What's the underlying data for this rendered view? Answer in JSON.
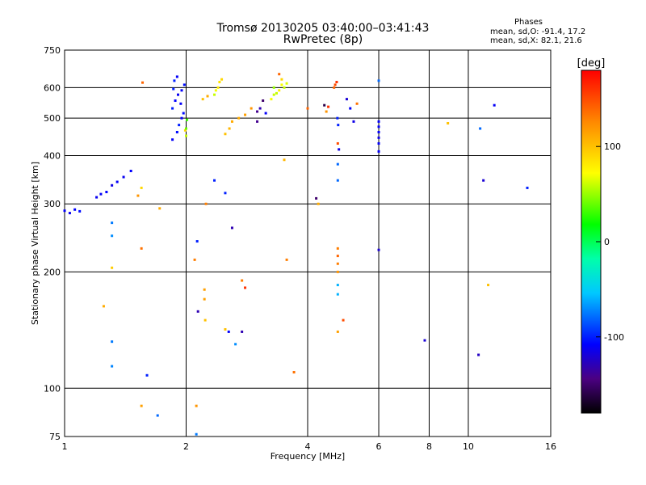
{
  "header": {
    "title": "Tromsø 20130205 03:40:00–03:41:43",
    "subtitle": "RwPretec (8p)"
  },
  "phase_box": {
    "heading": "Phases",
    "line_o": "mean, sd,O: -91.4, 17.2",
    "line_x": "mean, sd,X:  82.1, 21.6"
  },
  "colors": {
    "frame": "#000000",
    "background": "#ffffff"
  },
  "chart_data": {
    "type": "scatter",
    "xlabel": "Frequency [MHz]",
    "ylabel": "Stationary phase Virtual Height [km]",
    "xscale": "log",
    "yscale": "log",
    "xlim": [
      1,
      16
    ],
    "ylim": [
      75,
      750
    ],
    "xticks": [
      1,
      2,
      4,
      6,
      8,
      10,
      16
    ],
    "xtick_labels": [
      "1",
      "2",
      "4",
      "6",
      "8",
      "10",
      "16"
    ],
    "yticks": [
      75,
      100,
      200,
      300,
      400,
      500,
      600,
      750
    ],
    "ytick_labels": [
      "75",
      "100",
      "200",
      "300",
      "400",
      "500",
      "600",
      "750"
    ],
    "grid": true,
    "colorbar": {
      "label": "[deg]",
      "range": [
        -180,
        180
      ],
      "ticks": [
        -100,
        0,
        100
      ],
      "tick_labels": [
        "-100",
        "0",
        "100"
      ]
    },
    "points": [
      [
        1.0,
        288,
        -110
      ],
      [
        1.03,
        284,
        -112
      ],
      [
        1.06,
        290,
        -108
      ],
      [
        1.09,
        287,
        -105
      ],
      [
        1.2,
        312,
        -112
      ],
      [
        1.23,
        318,
        -110
      ],
      [
        1.27,
        322,
        -108
      ],
      [
        1.31,
        335,
        -115
      ],
      [
        1.35,
        342,
        -110
      ],
      [
        1.4,
        352,
        -112
      ],
      [
        1.46,
        365,
        -108
      ],
      [
        1.31,
        268,
        -75
      ],
      [
        1.31,
        248,
        -70
      ],
      [
        1.31,
        132,
        -75
      ],
      [
        1.31,
        114,
        -72
      ],
      [
        1.31,
        205,
        95
      ],
      [
        1.25,
        163,
        110
      ],
      [
        1.55,
        230,
        135
      ],
      [
        1.55,
        90,
        115
      ],
      [
        1.56,
        618,
        140
      ],
      [
        1.6,
        108,
        -100
      ],
      [
        1.7,
        85,
        -80
      ],
      [
        1.72,
        292,
        110
      ],
      [
        1.52,
        315,
        120
      ],
      [
        1.55,
        330,
        90
      ],
      [
        1.85,
        440,
        -110
      ],
      [
        1.9,
        460,
        -105
      ],
      [
        1.92,
        480,
        -100
      ],
      [
        1.95,
        500,
        -110
      ],
      [
        1.97,
        515,
        -105
      ],
      [
        1.85,
        530,
        -100
      ],
      [
        1.88,
        555,
        -108
      ],
      [
        1.91,
        575,
        -112
      ],
      [
        1.95,
        590,
        -110
      ],
      [
        1.98,
        610,
        -105
      ],
      [
        1.87,
        625,
        -100
      ],
      [
        1.9,
        640,
        -110
      ],
      [
        1.86,
        595,
        -100
      ],
      [
        1.94,
        545,
        -110
      ],
      [
        1.99,
        465,
        90
      ],
      [
        2.0,
        450,
        60
      ],
      [
        2.0,
        470,
        40
      ],
      [
        2.01,
        495,
        30
      ],
      [
        2.2,
        560,
        100
      ],
      [
        2.26,
        570,
        110
      ],
      [
        2.24,
        300,
        130
      ],
      [
        2.22,
        170,
        115
      ],
      [
        2.22,
        180,
        115
      ],
      [
        2.23,
        150,
        100
      ],
      [
        2.1,
        215,
        130
      ],
      [
        2.12,
        90,
        120
      ],
      [
        2.12,
        76,
        -75
      ],
      [
        2.13,
        240,
        -100
      ],
      [
        2.14,
        158,
        -130
      ],
      [
        2.35,
        575,
        60
      ],
      [
        2.37,
        590,
        70
      ],
      [
        2.4,
        600,
        80
      ],
      [
        2.42,
        620,
        85
      ],
      [
        2.45,
        630,
        90
      ],
      [
        2.5,
        455,
        100
      ],
      [
        2.56,
        470,
        105
      ],
      [
        2.6,
        490,
        110
      ],
      [
        2.7,
        500,
        110
      ],
      [
        2.8,
        510,
        115
      ],
      [
        2.9,
        530,
        120
      ],
      [
        2.5,
        320,
        -100
      ],
      [
        2.35,
        345,
        -100
      ],
      [
        2.6,
        260,
        -130
      ],
      [
        2.75,
        190,
        130
      ],
      [
        2.55,
        140,
        -110
      ],
      [
        2.65,
        130,
        -70
      ],
      [
        2.75,
        140,
        -130
      ],
      [
        2.8,
        182,
        160
      ],
      [
        2.5,
        142,
        100
      ],
      [
        3.0,
        520,
        -140
      ],
      [
        3.05,
        530,
        -130
      ],
      [
        3.0,
        490,
        -140
      ],
      [
        3.1,
        555,
        -150
      ],
      [
        3.15,
        515,
        -110
      ],
      [
        3.25,
        560,
        70
      ],
      [
        3.3,
        575,
        60
      ],
      [
        3.4,
        590,
        80
      ],
      [
        3.45,
        610,
        70
      ],
      [
        3.5,
        600,
        60
      ],
      [
        3.55,
        615,
        65
      ],
      [
        3.35,
        580,
        60
      ],
      [
        3.3,
        600,
        50
      ],
      [
        3.45,
        630,
        90
      ],
      [
        3.4,
        650,
        140
      ],
      [
        3.5,
        390,
        105
      ],
      [
        3.55,
        215,
        130
      ],
      [
        3.7,
        110,
        135
      ],
      [
        4.0,
        530,
        140
      ],
      [
        4.2,
        310,
        -150
      ],
      [
        4.25,
        300,
        110
      ],
      [
        4.4,
        540,
        -160
      ],
      [
        4.45,
        520,
        120
      ],
      [
        4.5,
        535,
        160
      ],
      [
        4.65,
        600,
        140
      ],
      [
        4.68,
        610,
        150
      ],
      [
        4.72,
        620,
        160
      ],
      [
        4.74,
        500,
        -100
      ],
      [
        4.76,
        480,
        -100
      ],
      [
        4.75,
        430,
        150
      ],
      [
        4.78,
        415,
        -115
      ],
      [
        4.75,
        380,
        -80
      ],
      [
        4.75,
        345,
        -80
      ],
      [
        4.75,
        230,
        130
      ],
      [
        4.75,
        220,
        140
      ],
      [
        4.75,
        210,
        130
      ],
      [
        4.75,
        200,
        120
      ],
      [
        4.75,
        185,
        -60
      ],
      [
        4.75,
        175,
        -60
      ],
      [
        4.75,
        140,
        115
      ],
      [
        4.9,
        150,
        150
      ],
      [
        5.0,
        560,
        -120
      ],
      [
        5.1,
        530,
        -110
      ],
      [
        5.2,
        490,
        -115
      ],
      [
        5.3,
        545,
        135
      ],
      [
        6.0,
        625,
        -80
      ],
      [
        6.0,
        490,
        -110
      ],
      [
        6.0,
        475,
        -110
      ],
      [
        6.0,
        460,
        -110
      ],
      [
        6.0,
        445,
        -115
      ],
      [
        6.0,
        430,
        -110
      ],
      [
        6.0,
        410,
        -110
      ],
      [
        6.0,
        228,
        -120
      ],
      [
        7.8,
        133,
        -120
      ],
      [
        8.9,
        485,
        100
      ],
      [
        10.7,
        470,
        -80
      ],
      [
        10.9,
        345,
        -120
      ],
      [
        11.2,
        185,
        100
      ],
      [
        11.6,
        540,
        -110
      ],
      [
        14.0,
        330,
        -100
      ],
      [
        10.6,
        122,
        -125
      ]
    ]
  }
}
